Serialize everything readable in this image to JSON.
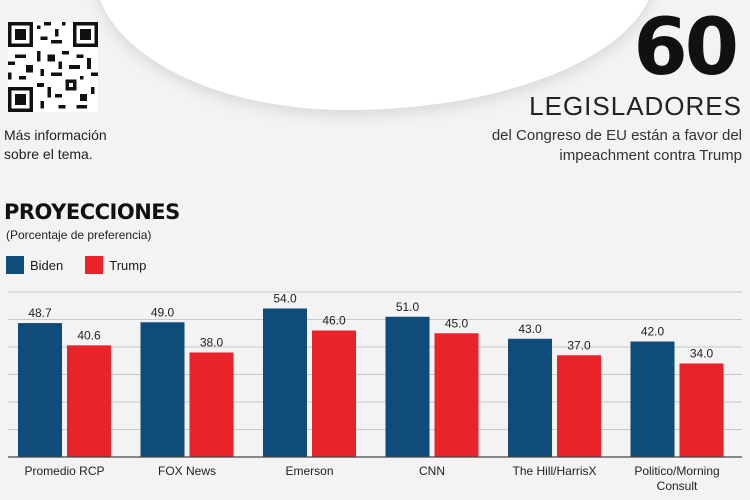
{
  "info": {
    "qr_caption_line1": "Más información",
    "qr_caption_line2": "sobre el tema."
  },
  "highlight": {
    "number": "60",
    "label": "LEGISLADORES",
    "desc_line1": "del Congreso de EU están a favor del",
    "desc_line2": "impeachment contra Trump"
  },
  "colors": {
    "biden": "#0f4c7a",
    "trump": "#e8232a",
    "grid": "#c9c9c9"
  },
  "chart_data": {
    "type": "bar",
    "title": "PROYECCIONES",
    "subtitle": "(Porcentaje de preferencia)",
    "categories": [
      [
        "Promedio RCP"
      ],
      [
        "FOX News"
      ],
      [
        "Emerson"
      ],
      [
        "CNN"
      ],
      [
        "The Hill/HarrisX"
      ],
      [
        "Politico/Morning",
        "Consult"
      ]
    ],
    "series": [
      {
        "name": "Biden",
        "values": [
          48.7,
          49.0,
          54.0,
          51.0,
          43.0,
          42.0
        ]
      },
      {
        "name": "Trump",
        "values": [
          40.6,
          38.0,
          46.0,
          45.0,
          37.0,
          34.0
        ]
      }
    ],
    "value_labels": {
      "Biden": [
        "48.7",
        "49.0",
        "54.0",
        "51.0",
        "43.0",
        "42.0"
      ],
      "Trump": [
        "40.6",
        "38.0",
        "46.0",
        "45.0",
        "37.0",
        "34.0"
      ]
    },
    "ylim": [
      0,
      60
    ],
    "grid": true,
    "legend": "top-left"
  }
}
